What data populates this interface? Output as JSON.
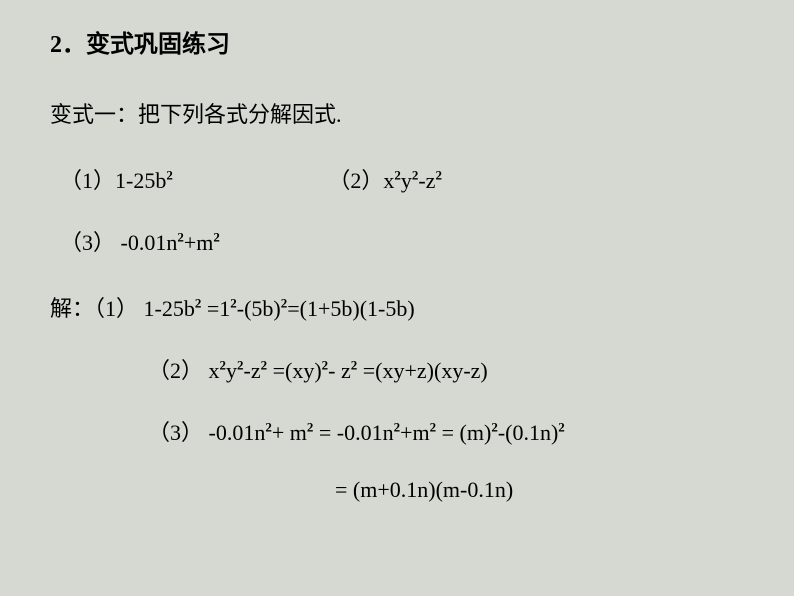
{
  "background_color": "#d6d8d2",
  "text_color": "#000000",
  "title": {
    "number": "2．",
    "text": "变式巩固练习",
    "fontsize": 24,
    "weight": "bold"
  },
  "subtitle": "变式一：把下列各式分解因式.",
  "problems": {
    "p1_label": "（1）",
    "p1_expr": "1-25b",
    "p2_label": "（2）",
    "p2_pre": "x",
    "p2_mid": "y",
    "p2_post": "-z",
    "p3_label": "（3）",
    "p3_pre": " -0.01n",
    "p3_post": "+m"
  },
  "solution": {
    "label": "解：",
    "s1_label": "（1）",
    "s1_a": " 1-25b",
    "s1_b": "  =1",
    "s1_c": "-(5b)",
    "s1_d": "=(1+5b)(1-5b)",
    "s2_label": "（2）",
    "s2_a": " x",
    "s2_b": "y",
    "s2_c": "-z",
    "s2_d": " =(xy)",
    "s2_e": "- z",
    "s2_f": " =(xy+z)(xy-z)",
    "s3_label": "（3）",
    "s3_a": " -0.01n",
    "s3_b": "+ m",
    "s3_c": " = -0.01n",
    "s3_d": "+m",
    "s3_e": " = (m)",
    "s3_f": "-(0.1n)",
    "s4": "= (m+0.1n)(m-0.1n)"
  },
  "typography": {
    "body_fontsize": 22,
    "sup_fontsize": 13,
    "font_family": "SimSun, Times New Roman"
  }
}
